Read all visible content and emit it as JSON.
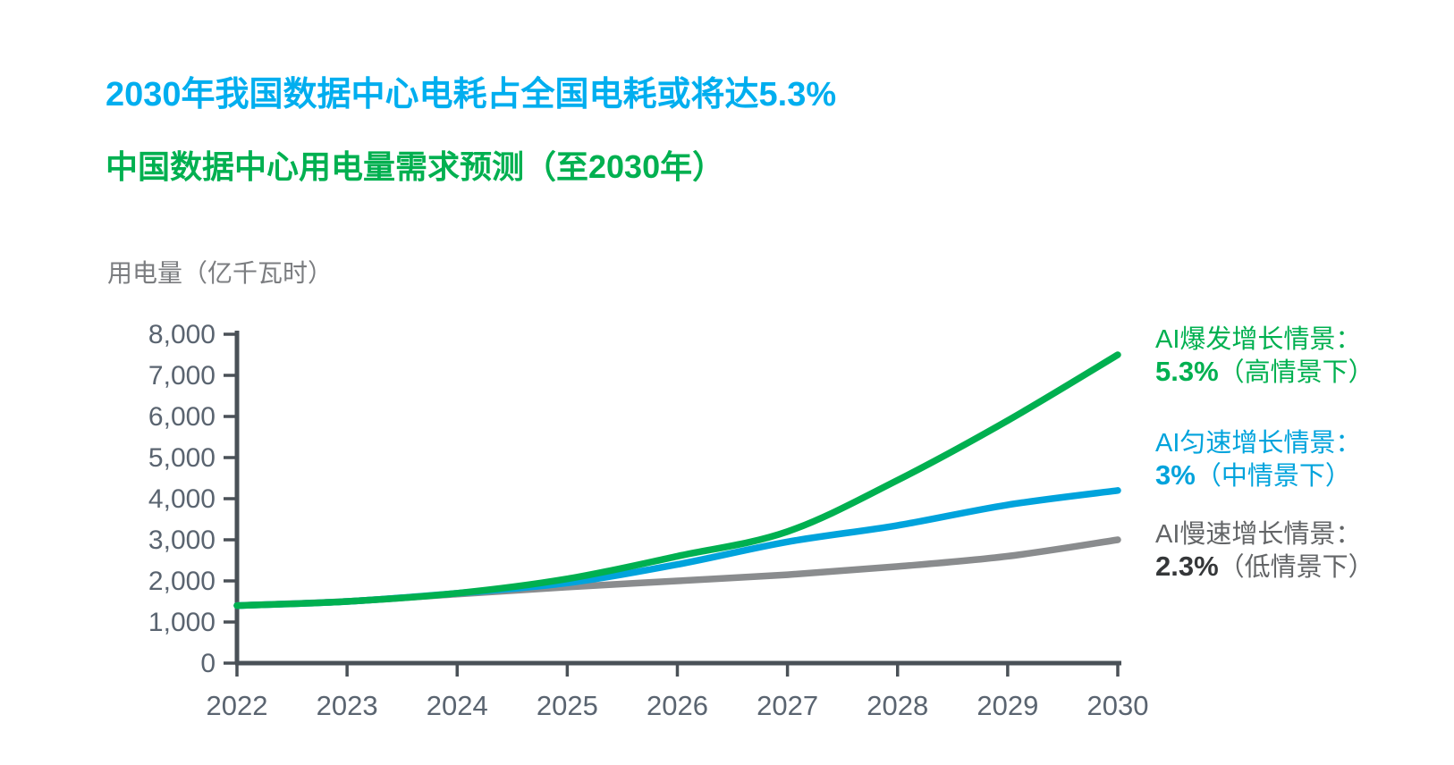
{
  "header": {
    "title": "2030年我国数据中心电耗占全国电耗或将达5.3%",
    "title_color": "#00aeef",
    "subtitle": "中国数据中心用电量需求预测（至2030年）",
    "subtitle_color": "#00b050"
  },
  "chart_data": {
    "type": "line",
    "title": "中国数据中心用电量需求预测（至2030年）",
    "ylabel": "用电量（亿千瓦时）",
    "xlabel": "",
    "ylim": [
      0,
      8000
    ],
    "y_ticks": [
      0,
      1000,
      2000,
      3000,
      4000,
      5000,
      6000,
      7000,
      8000
    ],
    "grid": false,
    "legend_position": "right",
    "categories": [
      "2022",
      "2023",
      "2024",
      "2025",
      "2026",
      "2027",
      "2028",
      "2029",
      "2030"
    ],
    "series": [
      {
        "name": "AI爆发增长情景",
        "line1": "AI爆发增长情景：",
        "pct": "5.3%",
        "suffix": "（高情景下）",
        "color": "#00b050",
        "label_color": "#00b050",
        "pct_color": "#00b050",
        "values": [
          1400,
          1500,
          1700,
          2050,
          2600,
          3200,
          4450,
          5900,
          7500
        ]
      },
      {
        "name": "AI匀速增长情景",
        "line1": "AI匀速增长情景：",
        "pct": "3%",
        "suffix": "（中情景下）",
        "color": "#00a3dc",
        "label_color": "#00a3dc",
        "pct_color": "#00a3dc",
        "values": [
          1400,
          1500,
          1700,
          1950,
          2400,
          2950,
          3350,
          3850,
          4200
        ]
      },
      {
        "name": "AI慢速增长情景",
        "line1": "AI慢速增长情景：",
        "pct": "2.3%",
        "suffix": "（低情景下）",
        "color": "#8a8c8e",
        "label_color": "#636567",
        "pct_color": "#353739",
        "values": [
          1400,
          1500,
          1680,
          1850,
          2000,
          2150,
          2350,
          2600,
          3000
        ]
      }
    ],
    "axis": {
      "line_color": "#4a5157",
      "tick_text_color": "#5a6470",
      "ylabel_color": "#7b7d80"
    }
  }
}
